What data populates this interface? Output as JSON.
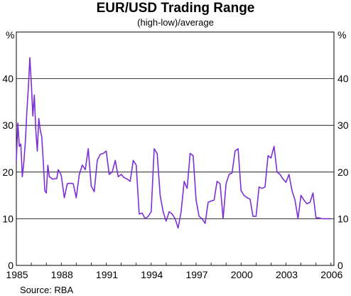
{
  "chart_data": {
    "type": "line",
    "title": "EUR/USD Trading Range",
    "subtitle": "(high-low)/average",
    "source": "Source: RBA",
    "y_unit_left": "%",
    "y_unit_right": "%",
    "xlim": [
      1985,
      2006.2
    ],
    "ylim": [
      0,
      50
    ],
    "y_ticks": [
      0,
      10,
      20,
      30,
      40
    ],
    "x_ticks": [
      1985,
      1988,
      1991,
      1994,
      1997,
      2000,
      2003,
      2006
    ],
    "x_tick_labels": [
      "1985",
      "1988",
      "1991",
      "1994",
      "1997",
      "2000",
      "2003",
      "2006"
    ],
    "grid": true,
    "line_color": "#7b2fd6",
    "series": [
      {
        "x": [
          1985.0,
          1985.1,
          1985.2,
          1985.3,
          1985.4,
          1985.5,
          1985.6,
          1985.7,
          1985.8,
          1985.9,
          1986.0,
          1986.1,
          1986.2,
          1986.3,
          1986.4,
          1986.5,
          1986.6,
          1986.7,
          1986.8,
          1986.9,
          1987.0,
          1987.1,
          1987.2,
          1987.3,
          1987.4,
          1987.5,
          1987.6,
          1987.7,
          1987.8,
          1987.9,
          1988.0,
          1988.2,
          1988.4,
          1988.6,
          1988.8,
          1989.0,
          1989.2,
          1989.4,
          1989.6,
          1989.8,
          1990.0,
          1990.2,
          1990.4,
          1990.6,
          1990.8,
          1991.0,
          1991.2,
          1991.4,
          1991.6,
          1991.8,
          1992.0,
          1992.2,
          1992.4,
          1992.6,
          1992.8,
          1993.0,
          1993.2,
          1993.4,
          1993.6,
          1993.8,
          1994.0,
          1994.2,
          1994.4,
          1994.6,
          1994.8,
          1995.0,
          1995.2,
          1995.4,
          1995.6,
          1995.8,
          1996.0,
          1996.2,
          1996.4,
          1996.6,
          1996.8,
          1997.0,
          1997.2,
          1997.4,
          1997.6,
          1997.8,
          1998.0,
          1998.2,
          1998.4,
          1998.6,
          1998.8,
          1999.0,
          1999.2,
          1999.4,
          1999.6,
          1999.8,
          2000.0,
          2000.2,
          2000.4,
          2000.6,
          2000.8,
          2001.0,
          2001.2,
          2001.4,
          2001.6,
          2001.8,
          2002.0,
          2002.2,
          2002.4,
          2002.6,
          2002.8,
          2003.0,
          2003.2,
          2003.4,
          2003.6,
          2003.8,
          2004.0,
          2004.2,
          2004.4,
          2004.6,
          2004.8,
          2005.0,
          2005.2,
          2005.4,
          2005.6,
          2005.8,
          2006.0
        ],
        "values": [
          22.5,
          30.5,
          25.5,
          26.0,
          19.0,
          22.0,
          26.5,
          33.0,
          38.0,
          44.5,
          39.0,
          32.0,
          36.5,
          29.0,
          24.5,
          31.5,
          29.0,
          27.5,
          22.0,
          16.0,
          15.5,
          21.5,
          19.0,
          18.8,
          18.5,
          18.5,
          18.6,
          18.6,
          20.5,
          20.0,
          19.2,
          14.5,
          17.5,
          17.6,
          17.5,
          14.5,
          19.5,
          21.5,
          20.5,
          25.0,
          17.0,
          15.8,
          22.5,
          23.8,
          24.0,
          24.5,
          19.5,
          20.0,
          22.5,
          19.0,
          19.5,
          18.8,
          18.5,
          18.0,
          22.5,
          21.5,
          11.0,
          11.2,
          10.0,
          10.5,
          11.5,
          25.0,
          24.0,
          15.0,
          11.5,
          9.5,
          11.5,
          11.0,
          10.0,
          8.0,
          11.5,
          18.0,
          16.5,
          24.0,
          23.5,
          14.0,
          10.5,
          10.0,
          9.0,
          13.5,
          13.8,
          14.0,
          18.0,
          17.5,
          10.0,
          17.5,
          19.5,
          19.8,
          24.5,
          25.0,
          16.0,
          15.0,
          14.5,
          14.2,
          10.5,
          10.5,
          16.8,
          16.5,
          16.8,
          23.5,
          23.0,
          25.5,
          20.0,
          19.5,
          18.5,
          17.8,
          19.5,
          16.0,
          14.0,
          10.0,
          15.0,
          14.0,
          13.2,
          13.5,
          15.5,
          10.2,
          10.2,
          10.0,
          10.0,
          10.0,
          10.0
        ]
      }
    ]
  }
}
